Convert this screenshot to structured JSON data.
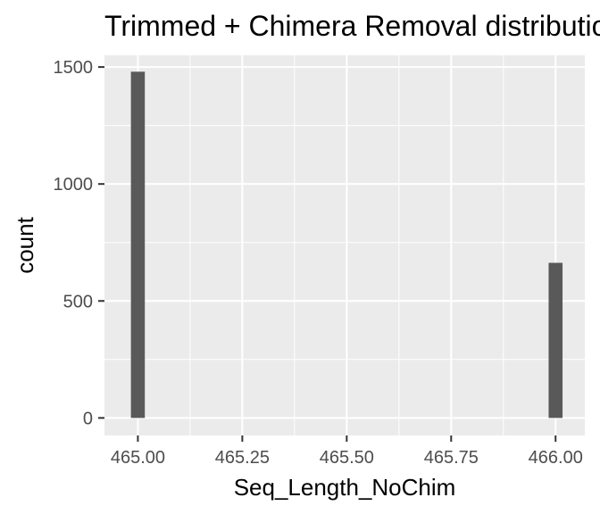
{
  "chart_data": {
    "type": "bar",
    "title": "Trimmed + Chimera Removal distribution",
    "xlabel": "Seq_Length_NoChim",
    "ylabel": "count",
    "x_ticks": [
      "465.00",
      "465.25",
      "465.50",
      "465.75",
      "466.00"
    ],
    "y_ticks": [
      "0",
      "500",
      "1000",
      "1500"
    ],
    "xlim": [
      464.92,
      466.07
    ],
    "ylim": [
      -75,
      1550
    ],
    "bin_width": 0.0333,
    "bins": [
      {
        "x": 465.0,
        "count": 1480
      },
      {
        "x": 466.0,
        "count": 663
      }
    ],
    "colors": {
      "panel": "#ebebeb",
      "grid_major": "#ffffff",
      "bar": "#595959"
    },
    "grid": true,
    "legend": "none"
  }
}
